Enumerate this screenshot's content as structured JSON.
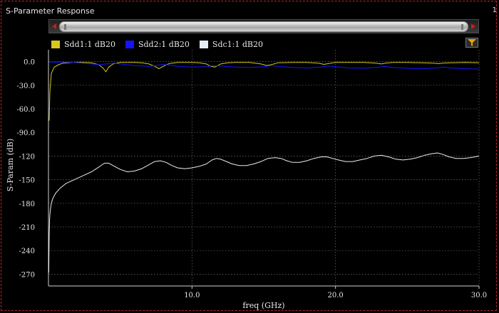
{
  "window": {
    "title": "S-Parameter Response",
    "corner_mark": "1"
  },
  "controls": {
    "scroll_left_icon": "left-arrow-icon",
    "scroll_right_icon": "right-arrow-icon",
    "filter_icon": "funnel-icon"
  },
  "colors": {
    "background": "#000000",
    "grid": "#6e6e6e",
    "axis": "#cfcfcf",
    "frame": "#b3262b",
    "filter_icon": "#f0a000"
  },
  "chart_data": {
    "type": "line",
    "title": "",
    "xlabel": "freq (GHz)",
    "ylabel": "S-Param (dB)",
    "xlim": [
      0,
      30
    ],
    "ylim": [
      -285,
      15
    ],
    "x_ticks": [
      10,
      20,
      30
    ],
    "x_tick_labels": [
      "10.0",
      "20.0",
      "30.0"
    ],
    "y_ticks": [
      0,
      -30,
      -60,
      -90,
      -120,
      -150,
      -180,
      -210,
      -240,
      -270
    ],
    "y_tick_labels": [
      "0.0",
      "-30.0",
      "-60.0",
      "-90.0",
      "-120",
      "-150",
      "-180",
      "-210",
      "-240",
      "-270"
    ],
    "grid": true,
    "legend_position": "top-left",
    "series": [
      {
        "name": "Sdd1:1 dB20",
        "color": "#d8c820",
        "x": [
          0.05,
          0.1,
          0.2,
          0.4,
          0.7,
          1.0,
          1.5,
          2.0,
          2.5,
          3.0,
          3.5,
          3.8,
          4.0,
          4.2,
          4.5,
          5.0,
          5.5,
          6.0,
          6.5,
          7.0,
          7.4,
          7.7,
          8.0,
          8.4,
          9.0,
          10.0,
          10.5,
          11.0,
          11.3,
          11.6,
          12.0,
          12.5,
          13.0,
          14.0,
          14.8,
          15.2,
          15.5,
          16.0,
          17.0,
          18.0,
          18.8,
          19.2,
          19.5,
          20.0,
          21.0,
          22.0,
          22.8,
          23.2,
          23.5,
          24.0,
          25.0,
          26.0,
          26.8,
          27.2,
          27.5,
          28.0,
          29.0,
          30.0
        ],
        "y": [
          -75,
          -38,
          -15,
          -7,
          -4,
          -2,
          -1.5,
          -1,
          -1,
          -1.5,
          -4,
          -8,
          -13,
          -7,
          -3,
          -1,
          -1,
          -1,
          -1.5,
          -3,
          -6,
          -9,
          -6,
          -2.5,
          -1,
          -1,
          -1.5,
          -3,
          -6,
          -7,
          -3,
          -1.5,
          -1,
          -1,
          -3,
          -5,
          -4,
          -1.5,
          -1,
          -1,
          -2,
          -3.5,
          -2.5,
          -1,
          -1,
          -1,
          -2,
          -3,
          -2,
          -1,
          -1,
          -1.5,
          -2,
          -2.5,
          -2,
          -1.5,
          -1,
          -1.5
        ]
      },
      {
        "name": "Sdd2:1 dB20",
        "color": "#1414ff",
        "x": [
          0.05,
          0.5,
          1.0,
          2.0,
          3.0,
          3.5,
          4.0,
          4.5,
          5.0,
          6.0,
          7.0,
          7.5,
          8.0,
          8.5,
          9.0,
          10.0,
          11.0,
          11.5,
          12.0,
          13.0,
          14.0,
          15.0,
          15.5,
          16.0,
          17.0,
          18.0,
          19.0,
          19.5,
          20.0,
          21.0,
          22.0,
          23.0,
          23.5,
          24.0,
          25.0,
          26.0,
          27.0,
          27.5,
          28.0,
          29.0,
          30.0
        ],
        "y": [
          -0.5,
          -0.5,
          -0.8,
          -1.5,
          -3,
          -4,
          -3,
          -2,
          -3,
          -5,
          -6,
          -5,
          -3.5,
          -4.5,
          -6,
          -7,
          -6.5,
          -5,
          -5.5,
          -7,
          -7.5,
          -6.5,
          -5,
          -6,
          -7.5,
          -8,
          -7,
          -5.5,
          -6.5,
          -8,
          -8.5,
          -7,
          -6,
          -7.5,
          -8.5,
          -9,
          -8,
          -7,
          -8,
          -9,
          -9.5
        ]
      },
      {
        "name": "Sdc1:1 dB20",
        "color": "#e8ecf4",
        "x": [
          0.02,
          0.05,
          0.08,
          0.12,
          0.2,
          0.3,
          0.5,
          0.8,
          1.2,
          1.8,
          2.4,
          3.0,
          3.5,
          3.9,
          4.2,
          4.6,
          5.0,
          5.5,
          6.0,
          6.5,
          7.0,
          7.4,
          7.8,
          8.2,
          8.6,
          9.0,
          9.5,
          10.0,
          10.5,
          11.0,
          11.4,
          11.7,
          12.0,
          12.4,
          12.8,
          13.3,
          13.8,
          14.3,
          14.8,
          15.3,
          15.8,
          16.2,
          16.6,
          17.0,
          17.5,
          18.0,
          18.5,
          19.0,
          19.4,
          19.8,
          20.2,
          20.7,
          21.2,
          21.7,
          22.2,
          22.7,
          23.2,
          23.7,
          24.2,
          24.7,
          25.2,
          25.7,
          26.2,
          26.7,
          27.1,
          27.5,
          27.9,
          28.4,
          28.9,
          29.4,
          30.0
        ],
        "y": [
          -268,
          -220,
          -200,
          -190,
          -180,
          -174,
          -167,
          -161,
          -155,
          -150,
          -145,
          -140,
          -134,
          -129,
          -129,
          -133,
          -137,
          -140,
          -139,
          -136,
          -131,
          -127,
          -126,
          -128,
          -132,
          -135,
          -136,
          -135,
          -133,
          -130,
          -125,
          -123,
          -124,
          -127,
          -130,
          -132,
          -132,
          -130,
          -127,
          -123,
          -122,
          -123,
          -126,
          -128,
          -128,
          -126,
          -123,
          -121,
          -121,
          -123,
          -125,
          -127,
          -127,
          -125,
          -123,
          -120,
          -119,
          -121,
          -124,
          -125,
          -124,
          -122,
          -119,
          -117,
          -116,
          -118,
          -121,
          -123,
          -123,
          -122,
          -120
        ]
      }
    ]
  }
}
